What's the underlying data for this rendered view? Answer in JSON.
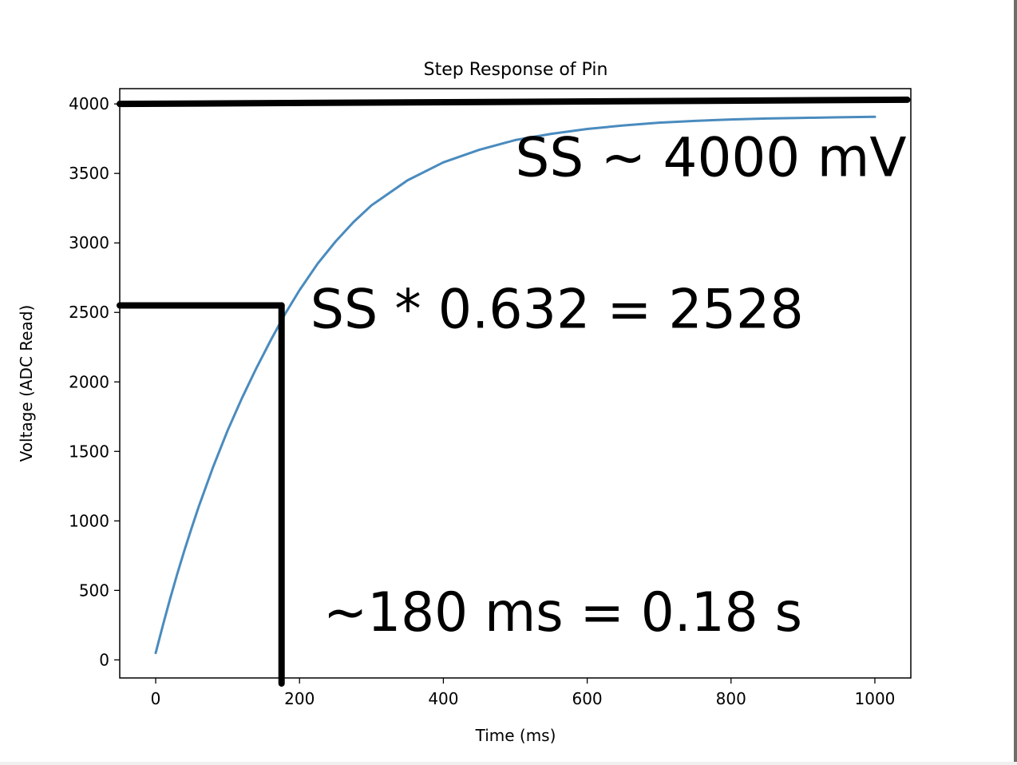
{
  "chart_data": {
    "type": "line",
    "title": "Step Response of Pin",
    "xlabel": "Time (ms)",
    "ylabel": "Voltage (ADC Read)",
    "xlim": [
      -50,
      1050
    ],
    "ylim": [
      -130,
      4110
    ],
    "xticks": [
      0,
      200,
      400,
      600,
      800,
      1000
    ],
    "yticks": [
      0,
      500,
      1000,
      1500,
      2000,
      2500,
      3000,
      3500,
      4000
    ],
    "grid": false,
    "series": [
      {
        "color": "#4a8bbe",
        "x": [
          0,
          10,
          20,
          30,
          40,
          50,
          60,
          80,
          100,
          120,
          140,
          160,
          180,
          200,
          225,
          250,
          275,
          300,
          350,
          400,
          450,
          500,
          550,
          600,
          650,
          700,
          750,
          800,
          850,
          900,
          950,
          1000
        ],
        "y": [
          50,
          250,
          440,
          620,
          790,
          950,
          1105,
          1390,
          1650,
          1885,
          2100,
          2300,
          2490,
          2660,
          2850,
          3010,
          3150,
          3270,
          3450,
          3580,
          3670,
          3740,
          3785,
          3820,
          3845,
          3865,
          3878,
          3888,
          3895,
          3900,
          3904,
          3907
        ]
      }
    ],
    "reference_lines": [
      {
        "type": "horizontal",
        "x": [
          -50,
          1045
        ],
        "y": [
          4000,
          4030
        ],
        "color": "#000000"
      },
      {
        "type": "horizontal",
        "x": [
          -50,
          175
        ],
        "y": [
          2550,
          2550
        ],
        "color": "#000000"
      },
      {
        "type": "vertical",
        "x": [
          175,
          175
        ],
        "y": [
          2550,
          -170
        ],
        "color": "#000000"
      }
    ],
    "annotations": [
      {
        "text": "SS ~ 4000 mV",
        "x": 500,
        "y": 3480
      },
      {
        "text": "SS * 0.632 = 2528",
        "x": 215,
        "y": 2390
      },
      {
        "text": "~180 ms = 0.18 s",
        "x": 233,
        "y": 210
      }
    ]
  }
}
